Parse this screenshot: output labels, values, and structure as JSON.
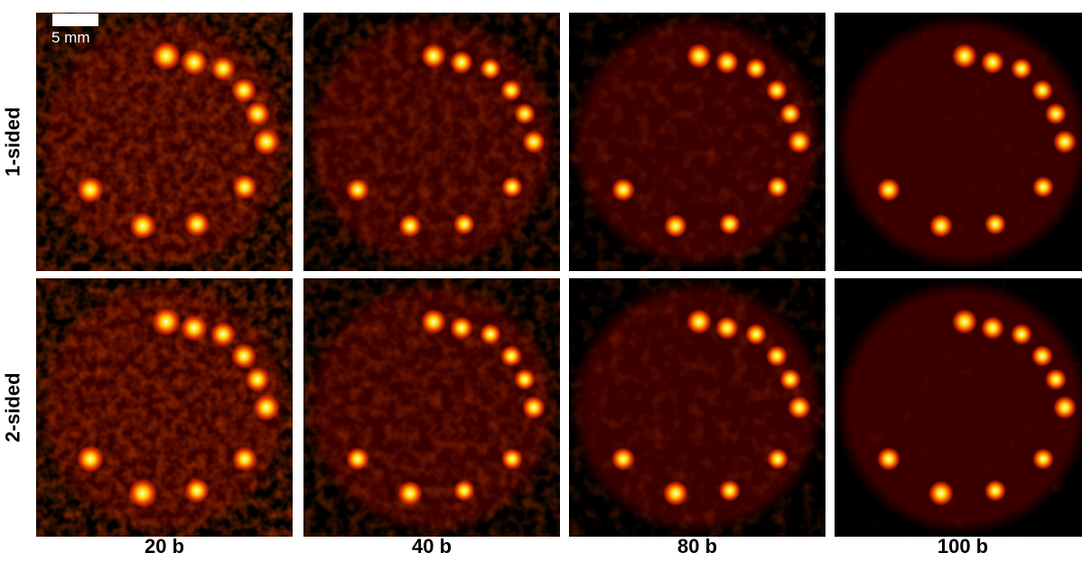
{
  "rows": [
    {
      "label": "1-sided"
    },
    {
      "label": "2-sided"
    }
  ],
  "columns": [
    {
      "label": "20 b"
    },
    {
      "label": "40 b"
    },
    {
      "label": "80 b"
    },
    {
      "label": "100 b"
    }
  ],
  "scale_bar": {
    "label": "5 mm"
  },
  "colors": {
    "background": "#000000",
    "phantom": "#3a0000",
    "spot_core": "#ffffcc",
    "spot_mid": "#ffd000",
    "spot_edge": "#e03000"
  }
}
